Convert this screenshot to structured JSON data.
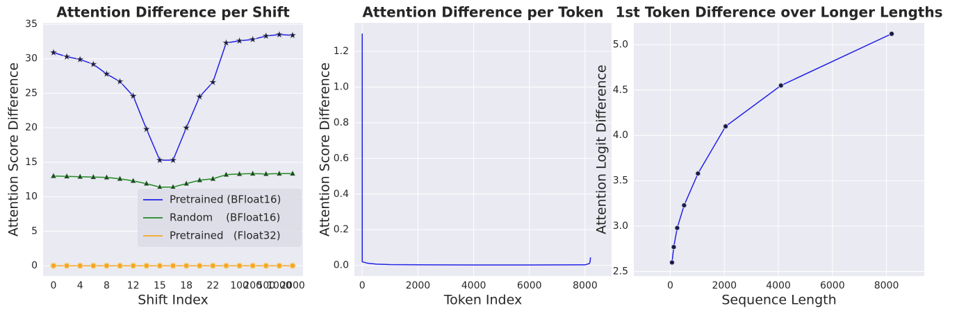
{
  "chart_data": [
    {
      "type": "line",
      "title": "Attention Difference per Shift",
      "x_label": "Shift Index",
      "y_label": "Attention Score Difference",
      "categories": [
        "0",
        null,
        "4",
        null,
        "8",
        null,
        "12",
        null,
        "15",
        null,
        "18",
        null,
        "22",
        null,
        "100",
        "200",
        "500",
        "1000",
        "2000"
      ],
      "series": [
        {
          "name": "Pretrained (BFloat16)",
          "color": "#1f1fe6",
          "marker": "star",
          "values": [
            30.9,
            30.3,
            29.9,
            29.2,
            27.8,
            26.7,
            24.6,
            19.8,
            15.3,
            15.3,
            20.0,
            24.5,
            26.6,
            32.3,
            32.6,
            32.8,
            33.3,
            33.5,
            33.4
          ]
        },
        {
          "name": "Random    (BFloat16)",
          "color": "#1f8a1f",
          "marker": "triangle",
          "values": [
            13.0,
            12.95,
            12.9,
            12.85,
            12.8,
            12.6,
            12.3,
            11.9,
            11.4,
            11.4,
            11.9,
            12.4,
            12.6,
            13.2,
            13.3,
            13.35,
            13.3,
            13.35,
            13.35
          ]
        },
        {
          "name": "Pretrained   (Float32)",
          "color": "#f5a623",
          "marker": "circle",
          "values": [
            0,
            0,
            0,
            0,
            0,
            0,
            0,
            0,
            0,
            0,
            0,
            0,
            0,
            0,
            0,
            0,
            0,
            0,
            0
          ]
        }
      ],
      "ylim": [
        -1.5,
        35.2
      ],
      "yticks": [
        0,
        5,
        10,
        15,
        20,
        25,
        30,
        35
      ],
      "grid": true,
      "legend": "lower right"
    },
    {
      "type": "line",
      "title": "Attention Difference per Token",
      "x_label": "Token Index",
      "y_label": "Attention Score Difference",
      "x": [
        0,
        1,
        2,
        5,
        10,
        50,
        100,
        200,
        500,
        1000,
        2000,
        4000,
        6000,
        8000,
        8150,
        8180,
        8192
      ],
      "series": [
        {
          "color": "#1f1fe6",
          "marker": "none",
          "values": [
            1.3,
            0.025,
            0.022,
            0.02,
            0.02,
            0.018,
            0.016,
            0.012,
            0.007,
            0.004,
            0.003,
            0.002,
            0.002,
            0.003,
            0.01,
            0.02,
            0.045
          ]
        }
      ],
      "xlim": [
        -280,
        8950
      ],
      "xticks": [
        0,
        2000,
        4000,
        6000,
        8000
      ],
      "ylim": [
        -0.06,
        1.36
      ],
      "yticks": [
        {
          "value": 0,
          "label": "0.0"
        },
        0.2,
        0.4,
        0.6,
        0.8,
        {
          "value": 1,
          "label": "1.0"
        },
        1.2
      ],
      "grid": true
    },
    {
      "type": "line",
      "title": "1st Token Difference over Longer Lengths",
      "x_label": "Sequence Length",
      "y_label": "Attention Logit Difference",
      "x": [
        64,
        128,
        256,
        512,
        1024,
        2048,
        4096,
        8192
      ],
      "series": [
        {
          "color": "#1f1fe6",
          "marker": "dot",
          "values": [
            2.6,
            2.77,
            2.98,
            3.23,
            3.58,
            4.1,
            4.55,
            5.12
          ]
        }
      ],
      "xlim": [
        -1350,
        9400
      ],
      "xticks": [
        0,
        2000,
        4000,
        6000,
        8000
      ],
      "ylim": [
        2.45,
        5.24
      ],
      "yticks": [
        2.5,
        {
          "value": 3,
          "label": "3.0"
        },
        3.5,
        {
          "value": 4,
          "label": "4.0"
        },
        4.5,
        {
          "value": 5,
          "label": "5.0"
        }
      ],
      "grid": true
    }
  ]
}
